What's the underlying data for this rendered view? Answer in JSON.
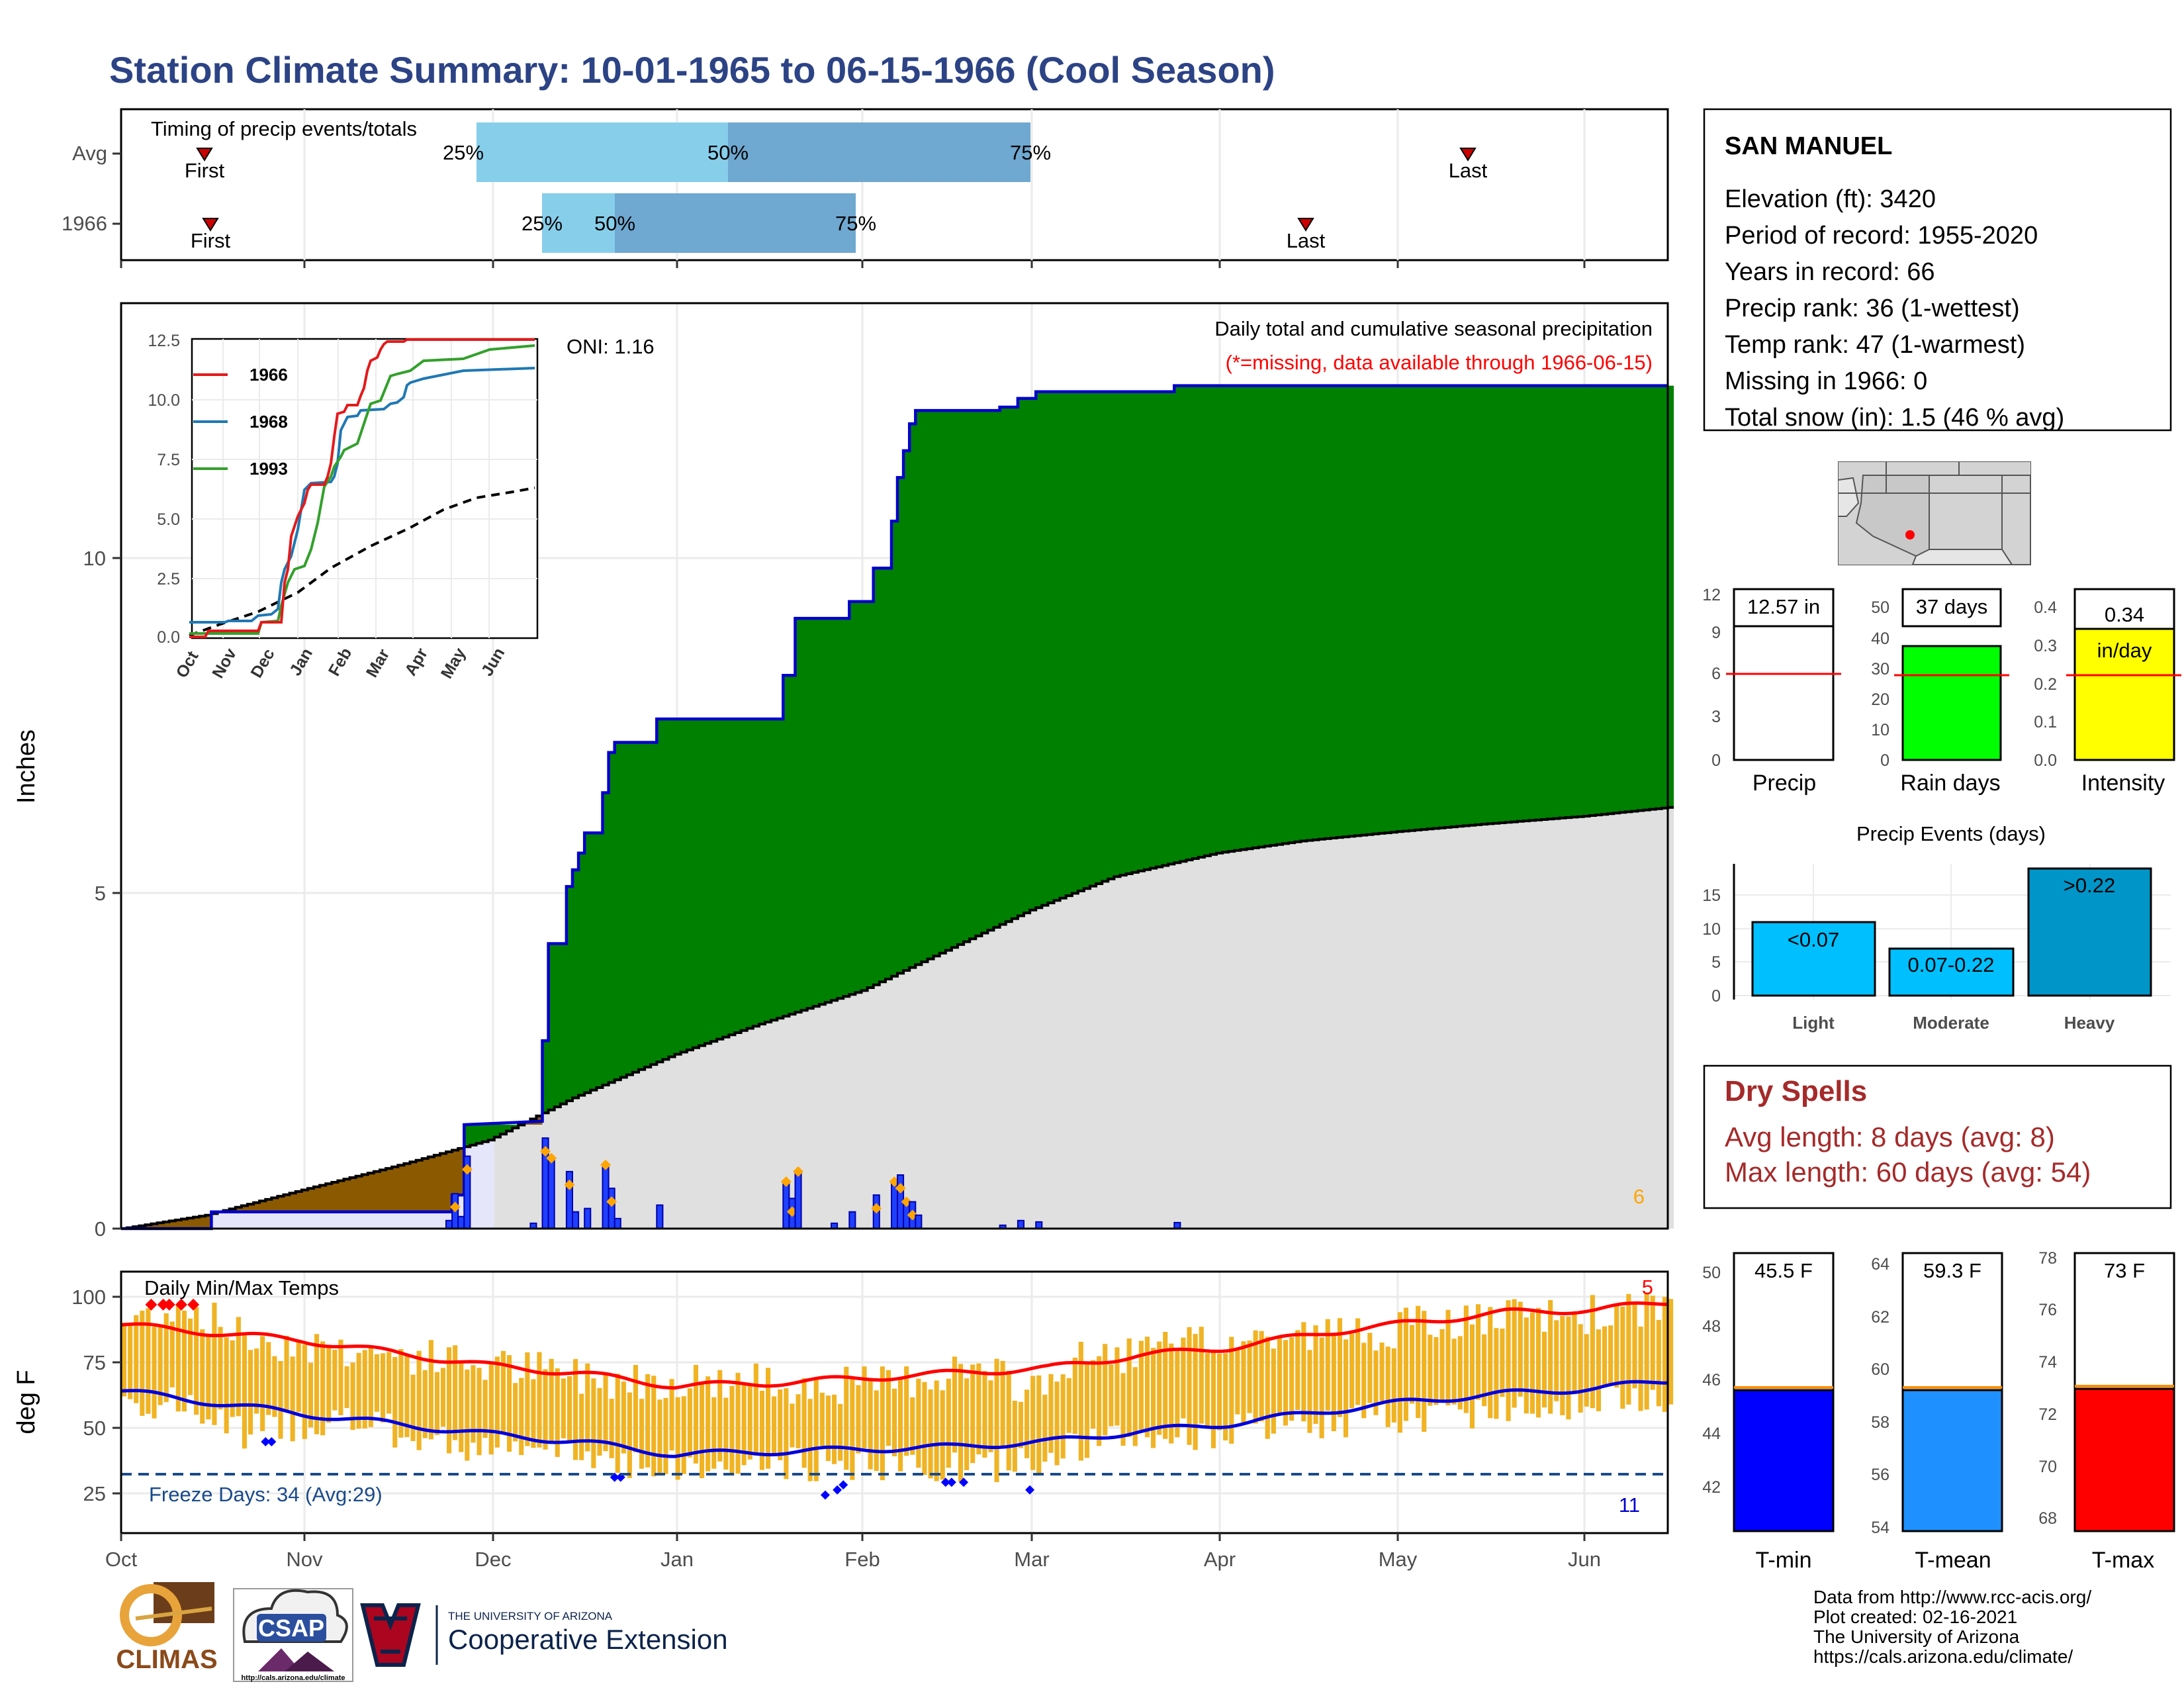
{
  "title": "Station Climate Summary: 10-01-1965 to 06-15-1966 (Cool Season)",
  "colors": {
    "title": "#2c4385",
    "precip_green": "#008000",
    "cumulative_line": "#0000cc",
    "climatology_gray": "#e0e0e0",
    "early_deficit_brown": "#8b5a00",
    "temp_bars": "#f0b323",
    "tmax_mean_line": "#ff0000",
    "tmin_mean_line": "#0000dd",
    "dry_spells": "#a52a2a",
    "light_bar": "#00bfff",
    "heavy_bar": "#0095c8",
    "rain_days_bar": "#00ff00",
    "intensity_bar": "#ffff00"
  },
  "timing_panel": {
    "title": "Timing of precip events/totals",
    "rows": [
      {
        "label": "Avg",
        "first_label": "First",
        "last_label": "Last",
        "p25": "25%",
        "p50": "50%",
        "p75": "75%"
      },
      {
        "label": "1966",
        "first_label": "First",
        "last_label": "Last",
        "p25": "25%",
        "p50": "50%",
        "p75": "75%"
      }
    ]
  },
  "precip_panel": {
    "title": "Daily total and cumulative seasonal precipitation",
    "missing_note": "(*=missing, data available through 1966-06-15)",
    "oni": "ONI: 1.16",
    "ylabel": "Inches",
    "yticks": [
      "0",
      "5",
      "10"
    ],
    "corner_value": "6"
  },
  "inset": {
    "legend": [
      "1966",
      "1968",
      "1993"
    ],
    "colors": [
      "#e31a1c",
      "#1f78b4",
      "#33a02c"
    ],
    "yticks": [
      "0.0",
      "2.5",
      "5.0",
      "7.5",
      "10.0",
      "12.5"
    ],
    "xticks": [
      "Oct",
      "Nov",
      "Dec",
      "Jan",
      "Feb",
      "Mar",
      "Apr",
      "May",
      "Jun"
    ]
  },
  "temp_panel": {
    "title": "Daily Min/Max Temps",
    "ylabel": "deg F",
    "yticks": [
      "25",
      "50",
      "75",
      "100"
    ],
    "freeze_label": "Freeze Days: 34 (Avg:29)",
    "hot_count": "5",
    "cold_count": "11"
  },
  "x_months": [
    "Oct",
    "Nov",
    "Dec",
    "Jan",
    "Feb",
    "Mar",
    "Apr",
    "May",
    "Jun"
  ],
  "station": {
    "name": "SAN MANUEL",
    "lines": [
      "Elevation (ft): 3420",
      "Period of record: 1955-2020",
      "Years in record: 66",
      "Precip rank: 36 (1-wettest)",
      "Temp rank: 47 (1-warmest)",
      "Missing in 1966: 0",
      "Total snow (in): 1.5 (46 % avg)"
    ]
  },
  "summary_bars": [
    {
      "label": "Precip",
      "value_text": "12.57 in",
      "value": 12.57,
      "avg": 6.1,
      "ymax": 12,
      "ticks": [
        "0",
        "3",
        "6",
        "9",
        "12"
      ],
      "color": "#ffffff"
    },
    {
      "label": "Rain days",
      "value_text": "37 days",
      "value": 37,
      "avg": 28,
      "ymax": 50,
      "ticks": [
        "0",
        "10",
        "20",
        "30",
        "40",
        "50"
      ],
      "color": "#00ff00"
    },
    {
      "label": "Intensity",
      "value_text": "0.34",
      "unit_text": "in/day",
      "value": 0.34,
      "avg": 0.22,
      "ymax": 0.4,
      "ticks": [
        "0.0",
        "0.1",
        "0.2",
        "0.3",
        "0.4"
      ],
      "color": "#ffff00"
    }
  ],
  "events": {
    "title": "Precip Events (days)",
    "yticks": [
      "0",
      "5",
      "10",
      "15"
    ],
    "bars": [
      {
        "label": "Light",
        "inner": "<0.07",
        "value": 11
      },
      {
        "label": "Moderate",
        "inner": "0.07-0.22",
        "value": 7
      },
      {
        "label": "Heavy",
        "inner": ">0.22",
        "value": 19
      }
    ]
  },
  "dry_spells": {
    "title": "Dry Spells",
    "avg_line": "Avg length: 8 days (avg: 8)",
    "max_line": "Max length: 60 days (avg: 54)"
  },
  "temp_bars": [
    {
      "label": "T-min",
      "value_text": "45.5 F",
      "value": 45.5,
      "ymin": 40.5,
      "ymax": 50.5,
      "ticks": [
        "42",
        "44",
        "46",
        "48",
        "50"
      ],
      "color": "#0000ff"
    },
    {
      "label": "T-mean",
      "value_text": "59.3 F",
      "value": 59.3,
      "ymin": 53.8,
      "ymax": 64.2,
      "ticks": [
        "54",
        "56",
        "58",
        "60",
        "62",
        "64"
      ],
      "color": "#1e90ff"
    },
    {
      "label": "T-max",
      "value_text": "73 F",
      "value": 73,
      "ymin": 67.5,
      "ymax": 78.2,
      "ticks": [
        "68",
        "70",
        "72",
        "74",
        "76",
        "78"
      ],
      "color": "#ff0000"
    }
  ],
  "credits": [
    "Data from http://www.rcc-acis.org/",
    "Plot created: 02-16-2021",
    "The University of Arizona",
    "https://cals.arizona.edu/climate/"
  ],
  "logos": {
    "climas": "CLIMAS",
    "csap": "CSAP",
    "csap_url": "http://cals.arizona.edu/climate",
    "ua_small": "THE UNIVERSITY OF ARIZONA",
    "ua_big": "Cooperative Extension"
  },
  "chart_data": [
    {
      "type": "area",
      "title": "Daily total and cumulative seasonal precipitation",
      "ylabel": "Inches",
      "ylim": [
        0,
        13.8
      ],
      "x_dates": [
        "1965-10-01",
        "1966-06-15"
      ],
      "cumulative_1966": [
        [
          "1965-10-01",
          0
        ],
        [
          "1965-10-16",
          0
        ],
        [
          "1965-10-16",
          0.25
        ],
        [
          "1965-11-25",
          0.25
        ],
        [
          "1965-11-25",
          0.5
        ],
        [
          "1965-11-27",
          0.5
        ],
        [
          "1965-11-27",
          1.55
        ],
        [
          "1965-12-10",
          1.6
        ],
        [
          "1965-12-10",
          2.8
        ],
        [
          "1965-12-11",
          2.8
        ],
        [
          "1965-12-11",
          4.25
        ],
        [
          "1965-12-14",
          4.25
        ],
        [
          "1965-12-14",
          5.1
        ],
        [
          "1965-12-15",
          5.1
        ],
        [
          "1965-12-15",
          5.35
        ],
        [
          "1965-12-16",
          5.35
        ],
        [
          "1965-12-16",
          5.6
        ],
        [
          "1965-12-17",
          5.6
        ],
        [
          "1965-12-17",
          5.9
        ],
        [
          "1965-12-20",
          5.9
        ],
        [
          "1965-12-20",
          6.5
        ],
        [
          "1965-12-21",
          6.5
        ],
        [
          "1965-12-21",
          7.1
        ],
        [
          "1965-12-22",
          7.1
        ],
        [
          "1965-12-22",
          7.25
        ],
        [
          "1965-12-29",
          7.25
        ],
        [
          "1965-12-29",
          7.6
        ],
        [
          "1966-01-19",
          7.6
        ],
        [
          "1966-01-19",
          8.25
        ],
        [
          "1966-01-21",
          8.25
        ],
        [
          "1966-01-21",
          9.1
        ],
        [
          "1966-01-30",
          9.1
        ],
        [
          "1966-01-30",
          9.35
        ],
        [
          "1966-02-03",
          9.35
        ],
        [
          "1966-02-03",
          9.85
        ],
        [
          "1966-02-06",
          9.85
        ],
        [
          "1966-02-06",
          10.55
        ],
        [
          "1966-02-07",
          10.55
        ],
        [
          "1966-02-07",
          11.2
        ],
        [
          "1966-02-08",
          11.2
        ],
        [
          "1966-02-08",
          11.6
        ],
        [
          "1966-02-09",
          11.6
        ],
        [
          "1966-02-09",
          12.0
        ],
        [
          "1966-02-10",
          12.0
        ],
        [
          "1966-02-10",
          12.2
        ],
        [
          "1966-02-24",
          12.2
        ],
        [
          "1966-02-24",
          12.25
        ],
        [
          "1966-02-27",
          12.25
        ],
        [
          "1966-02-27",
          12.38
        ],
        [
          "1966-03-02",
          12.38
        ],
        [
          "1966-03-02",
          12.48
        ],
        [
          "1966-03-25",
          12.48
        ],
        [
          "1966-03-25",
          12.57
        ],
        [
          "1966-06-15",
          12.57
        ]
      ],
      "cumulative_avg": [
        [
          "1965-10-01",
          0
        ],
        [
          "1965-10-15",
          0.2
        ],
        [
          "1965-11-01",
          0.6
        ],
        [
          "1965-11-15",
          0.92
        ],
        [
          "1965-12-01",
          1.32
        ],
        [
          "1965-12-15",
          1.95
        ],
        [
          "1966-01-01",
          2.6
        ],
        [
          "1966-01-15",
          3.05
        ],
        [
          "1966-02-01",
          3.55
        ],
        [
          "1966-02-15",
          4.15
        ],
        [
          "1966-03-01",
          4.75
        ],
        [
          "1966-03-15",
          5.25
        ],
        [
          "1966-04-01",
          5.6
        ],
        [
          "1966-04-15",
          5.78
        ],
        [
          "1966-05-01",
          5.92
        ],
        [
          "1966-05-15",
          6.03
        ],
        [
          "1966-06-01",
          6.15
        ],
        [
          "1966-06-15",
          6.28
        ]
      ],
      "daily": [
        [
          "1965-11-24",
          0.12
        ],
        [
          "1965-11-25",
          0.52
        ],
        [
          "1965-11-26",
          0.18
        ],
        [
          "1965-11-27",
          1.08
        ],
        [
          "1965-12-08",
          0.08
        ],
        [
          "1965-12-10",
          1.35
        ],
        [
          "1965-12-11",
          1.05
        ],
        [
          "1965-12-14",
          0.85
        ],
        [
          "1965-12-15",
          0.25
        ],
        [
          "1965-12-17",
          0.3
        ],
        [
          "1965-12-20",
          0.95
        ],
        [
          "1965-12-21",
          0.6
        ],
        [
          "1965-12-22",
          0.15
        ],
        [
          "1965-12-29",
          0.35
        ],
        [
          "1966-01-19",
          0.7
        ],
        [
          "1966-01-20",
          0.45
        ],
        [
          "1966-01-21",
          0.85
        ],
        [
          "1966-01-27",
          0.08
        ],
        [
          "1966-01-30",
          0.25
        ],
        [
          "1966-02-03",
          0.5
        ],
        [
          "1966-02-06",
          0.7
        ],
        [
          "1966-02-07",
          0.8
        ],
        [
          "1966-02-08",
          0.4
        ],
        [
          "1966-02-09",
          0.4
        ],
        [
          "1966-02-10",
          0.2
        ],
        [
          "1966-02-24",
          0.05
        ],
        [
          "1966-02-27",
          0.12
        ],
        [
          "1966-03-02",
          0.1
        ],
        [
          "1966-03-25",
          0.09
        ]
      ]
    },
    {
      "type": "line",
      "title": "",
      "series": [
        {
          "name": "1966"
        },
        {
          "name": "1968"
        },
        {
          "name": "1993"
        }
      ],
      "ylim": [
        0,
        12.5
      ],
      "months": [
        "Oct",
        "Nov",
        "Dec",
        "Jan",
        "Feb",
        "Mar",
        "Apr",
        "May",
        "Jun"
      ]
    },
    {
      "type": "bar",
      "title": "Daily Min/Max Temps",
      "ylabel": "deg F",
      "ylim": [
        5,
        108
      ],
      "freeze_line": 32,
      "tmax_mean": [
        [
          0,
          87
        ],
        [
          30,
          81
        ],
        [
          61,
          71
        ],
        [
          76,
          68
        ],
        [
          92,
          63
        ],
        [
          107,
          64
        ],
        [
          123,
          66
        ],
        [
          138,
          68
        ],
        [
          154,
          70
        ],
        [
          169,
          75
        ],
        [
          184,
          78
        ],
        [
          200,
          84
        ],
        [
          215,
          88
        ],
        [
          230,
          92
        ],
        [
          245,
          93
        ],
        [
          257,
          96
        ]
      ],
      "tmin_mean": [
        [
          0,
          61
        ],
        [
          30,
          52
        ],
        [
          61,
          44
        ],
        [
          76,
          41
        ],
        [
          92,
          36
        ],
        [
          107,
          37
        ],
        [
          123,
          38
        ],
        [
          138,
          39
        ],
        [
          154,
          41
        ],
        [
          169,
          45
        ],
        [
          184,
          48
        ],
        [
          200,
          53
        ],
        [
          215,
          57
        ],
        [
          230,
          60
        ],
        [
          245,
          62
        ],
        [
          257,
          65
        ]
      ],
      "tmax_anchor": [
        [
          0,
          88
        ],
        [
          10,
          95
        ],
        [
          20,
          82
        ],
        [
          35,
          78
        ],
        [
          50,
          74
        ],
        [
          65,
          70
        ],
        [
          80,
          66
        ],
        [
          95,
          65
        ],
        [
          110,
          64
        ],
        [
          125,
          63
        ],
        [
          140,
          70
        ],
        [
          150,
          62
        ],
        [
          160,
          74
        ],
        [
          175,
          78
        ],
        [
          190,
          82
        ],
        [
          205,
          84
        ],
        [
          220,
          88
        ],
        [
          235,
          90
        ],
        [
          250,
          92
        ],
        [
          257,
          96
        ]
      ],
      "tmin_anchor": [
        [
          0,
          58
        ],
        [
          10,
          55
        ],
        [
          20,
          45
        ],
        [
          35,
          50
        ],
        [
          50,
          42
        ],
        [
          65,
          38
        ],
        [
          80,
          35
        ],
        [
          95,
          30
        ],
        [
          110,
          32
        ],
        [
          125,
          33
        ],
        [
          140,
          30
        ],
        [
          150,
          34
        ],
        [
          160,
          40
        ],
        [
          175,
          44
        ],
        [
          190,
          46
        ],
        [
          205,
          50
        ],
        [
          220,
          52
        ],
        [
          235,
          56
        ],
        [
          250,
          58
        ],
        [
          257,
          60
        ]
      ]
    },
    {
      "type": "bar",
      "title": "Precip Events (days)",
      "categories": [
        "Light",
        "Moderate",
        "Heavy"
      ],
      "values": [
        11,
        7,
        19
      ]
    }
  ]
}
